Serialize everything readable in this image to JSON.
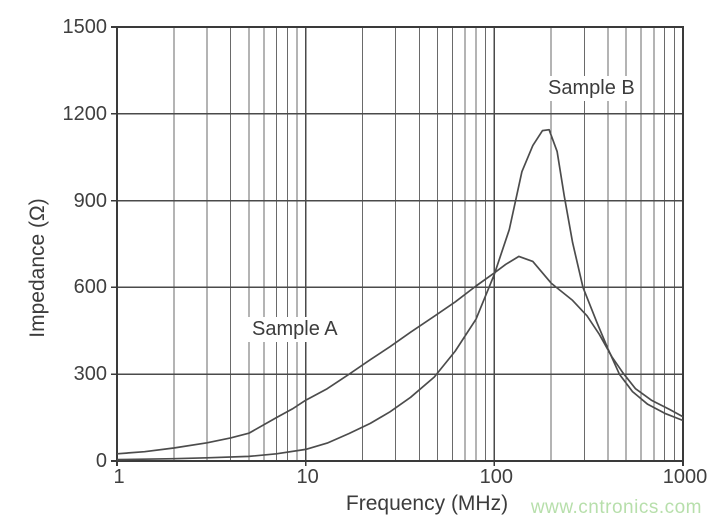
{
  "watermark": {
    "text": "www.cntronics.com",
    "color": "#b7dfab"
  },
  "colors": {
    "background": "#ffffff",
    "ink": "#3c3c3c",
    "border": "#3a3a3a",
    "grid_major": "#4a4a4a",
    "grid_minor": "#6a6a6a",
    "curve": "#4c4c4c"
  },
  "chart_data": {
    "type": "line",
    "title": "",
    "xlabel": "Frequency (MHz)",
    "ylabel": "Impedance (Ω)",
    "x_scale": "log",
    "x_range": [
      1,
      1000
    ],
    "y_range": [
      0,
      1500
    ],
    "x_ticks": [
      "1",
      "10",
      "100",
      "1000"
    ],
    "y_ticks": [
      "0",
      "300",
      "600",
      "900",
      "1200",
      "1500"
    ],
    "grid": "full log grid: minor vertical lines at 2-9 per decade, horizontal lines every 300",
    "legend": "inline text annotations near curves",
    "series_labels": [
      "Sample A",
      "Sample B"
    ],
    "series": [
      {
        "name": "Sample A",
        "points": [
          [
            1,
            25
          ],
          [
            1.4,
            32
          ],
          [
            2,
            45
          ],
          [
            3,
            63
          ],
          [
            4,
            80
          ],
          [
            5,
            96
          ],
          [
            7,
            150
          ],
          [
            8.5,
            180
          ],
          [
            10,
            210
          ],
          [
            13,
            250
          ],
          [
            17,
            300
          ],
          [
            22,
            350
          ],
          [
            28,
            395
          ],
          [
            36,
            445
          ],
          [
            48,
            500
          ],
          [
            62,
            550
          ],
          [
            80,
            605
          ],
          [
            100,
            650
          ],
          [
            115,
            680
          ],
          [
            135,
            707
          ],
          [
            160,
            690
          ],
          [
            200,
            615
          ],
          [
            260,
            555
          ],
          [
            310,
            502
          ],
          [
            360,
            438
          ],
          [
            420,
            360
          ],
          [
            480,
            305
          ],
          [
            560,
            250
          ],
          [
            680,
            210
          ],
          [
            850,
            178
          ],
          [
            1000,
            153
          ]
        ]
      },
      {
        "name": "Sample B",
        "points": [
          [
            1,
            5
          ],
          [
            2,
            8
          ],
          [
            3,
            11
          ],
          [
            5,
            16
          ],
          [
            7,
            25
          ],
          [
            10,
            40
          ],
          [
            13,
            62
          ],
          [
            17,
            95
          ],
          [
            22,
            130
          ],
          [
            28,
            170
          ],
          [
            36,
            220
          ],
          [
            48,
            290
          ],
          [
            62,
            380
          ],
          [
            80,
            490
          ],
          [
            100,
            645
          ],
          [
            120,
            800
          ],
          [
            140,
            1000
          ],
          [
            160,
            1090
          ],
          [
            180,
            1142
          ],
          [
            195,
            1145
          ],
          [
            215,
            1070
          ],
          [
            235,
            915
          ],
          [
            260,
            755
          ],
          [
            295,
            600
          ],
          [
            350,
            478
          ],
          [
            400,
            388
          ],
          [
            460,
            300
          ],
          [
            540,
            240
          ],
          [
            650,
            196
          ],
          [
            800,
            165
          ],
          [
            1000,
            140
          ]
        ]
      }
    ]
  }
}
